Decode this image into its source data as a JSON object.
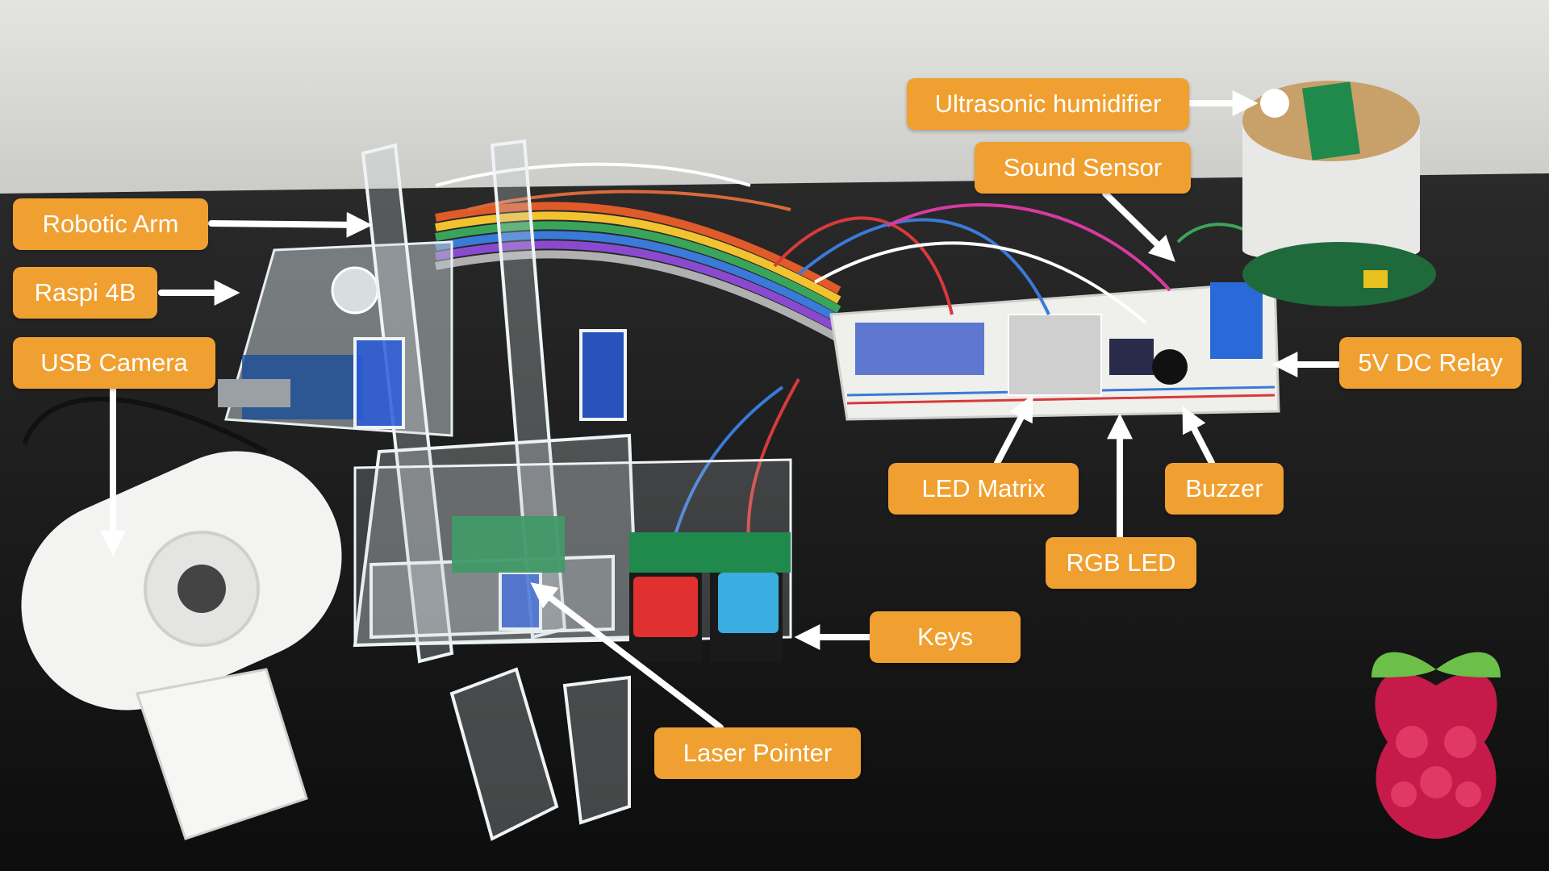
{
  "labels": {
    "robotic_arm": "Robotic Arm",
    "raspi_4b": "Raspi 4B",
    "usb_camera": "USB Camera",
    "ultrasonic_humidifier": "Ultrasonic humidifier",
    "sound_sensor": "Sound Sensor",
    "relay": "5V DC Relay",
    "led_matrix": "LED Matrix",
    "buzzer": "Buzzer",
    "rgb_led": "RGB LED",
    "keys": "Keys",
    "laser_pointer": "Laser Pointer"
  },
  "colors": {
    "label_bg": "#f0a030",
    "label_text": "#ffffff",
    "arrow": "#ffffff",
    "wall": "#d9d9d6",
    "table": "#151515",
    "raspberry_berry": "#c51a4a",
    "raspberry_leaf": "#6cc04a",
    "key_red": "#e03030",
    "key_blue": "#3aaee0",
    "green_tape": "#1f8a4c"
  },
  "icons": {
    "logo": "raspberry-pi-logo",
    "arrow": "arrow-icon"
  }
}
